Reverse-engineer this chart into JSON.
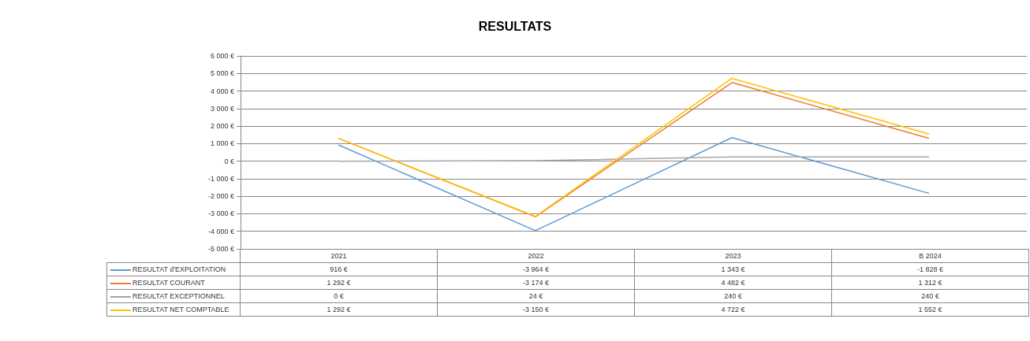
{
  "chart_data": {
    "type": "line",
    "title": "RESULTATS",
    "categories": [
      "2021",
      "2022",
      "2023",
      "B 2024"
    ],
    "series": [
      {
        "name": "RESULTAT d'EXPLOITATION",
        "color": "#5b9bd5",
        "values": [
          916,
          -3964,
          1343,
          -1828
        ],
        "value_labels": [
          "916 €",
          "-3 964 €",
          "1 343 €",
          "-1 828 €"
        ]
      },
      {
        "name": "RESULTAT COURANT",
        "color": "#ed7d31",
        "values": [
          1292,
          -3174,
          4482,
          1312
        ],
        "value_labels": [
          "1 292 €",
          "-3 174 €",
          "4 482 €",
          "1 312 €"
        ]
      },
      {
        "name": "RESULTAT EXCEPTIONNEL",
        "color": "#a5a5a5",
        "values": [
          0,
          24,
          240,
          240
        ],
        "value_labels": [
          "0 €",
          "24 €",
          "240 €",
          "240 €"
        ]
      },
      {
        "name": "RESULTAT NET COMPTABLE",
        "color": "#ffc000",
        "values": [
          1292,
          -3150,
          4722,
          1552
        ],
        "value_labels": [
          "1 292 €",
          "-3 150 €",
          "4 722 €",
          "1 552 €"
        ]
      }
    ],
    "ylim": [
      -5000,
      6000
    ],
    "yticks": [
      {
        "value": -5000,
        "label": "-5 000 €"
      },
      {
        "value": -4000,
        "label": "-4 000 €"
      },
      {
        "value": -3000,
        "label": "-3 000 €"
      },
      {
        "value": -2000,
        "label": "-2 000 €"
      },
      {
        "value": -1000,
        "label": "-1 000 €"
      },
      {
        "value": 0,
        "label": "0 €"
      },
      {
        "value": 1000,
        "label": "1 000 €"
      },
      {
        "value": 2000,
        "label": "2 000 €"
      },
      {
        "value": 3000,
        "label": "3 000 €"
      },
      {
        "value": 4000,
        "label": "4 000 €"
      },
      {
        "value": 5000,
        "label": "5 000 €"
      },
      {
        "value": 6000,
        "label": "6 000 €"
      }
    ],
    "grid": "y",
    "legend": "bottom",
    "marker": "none",
    "line_style": "solid"
  }
}
